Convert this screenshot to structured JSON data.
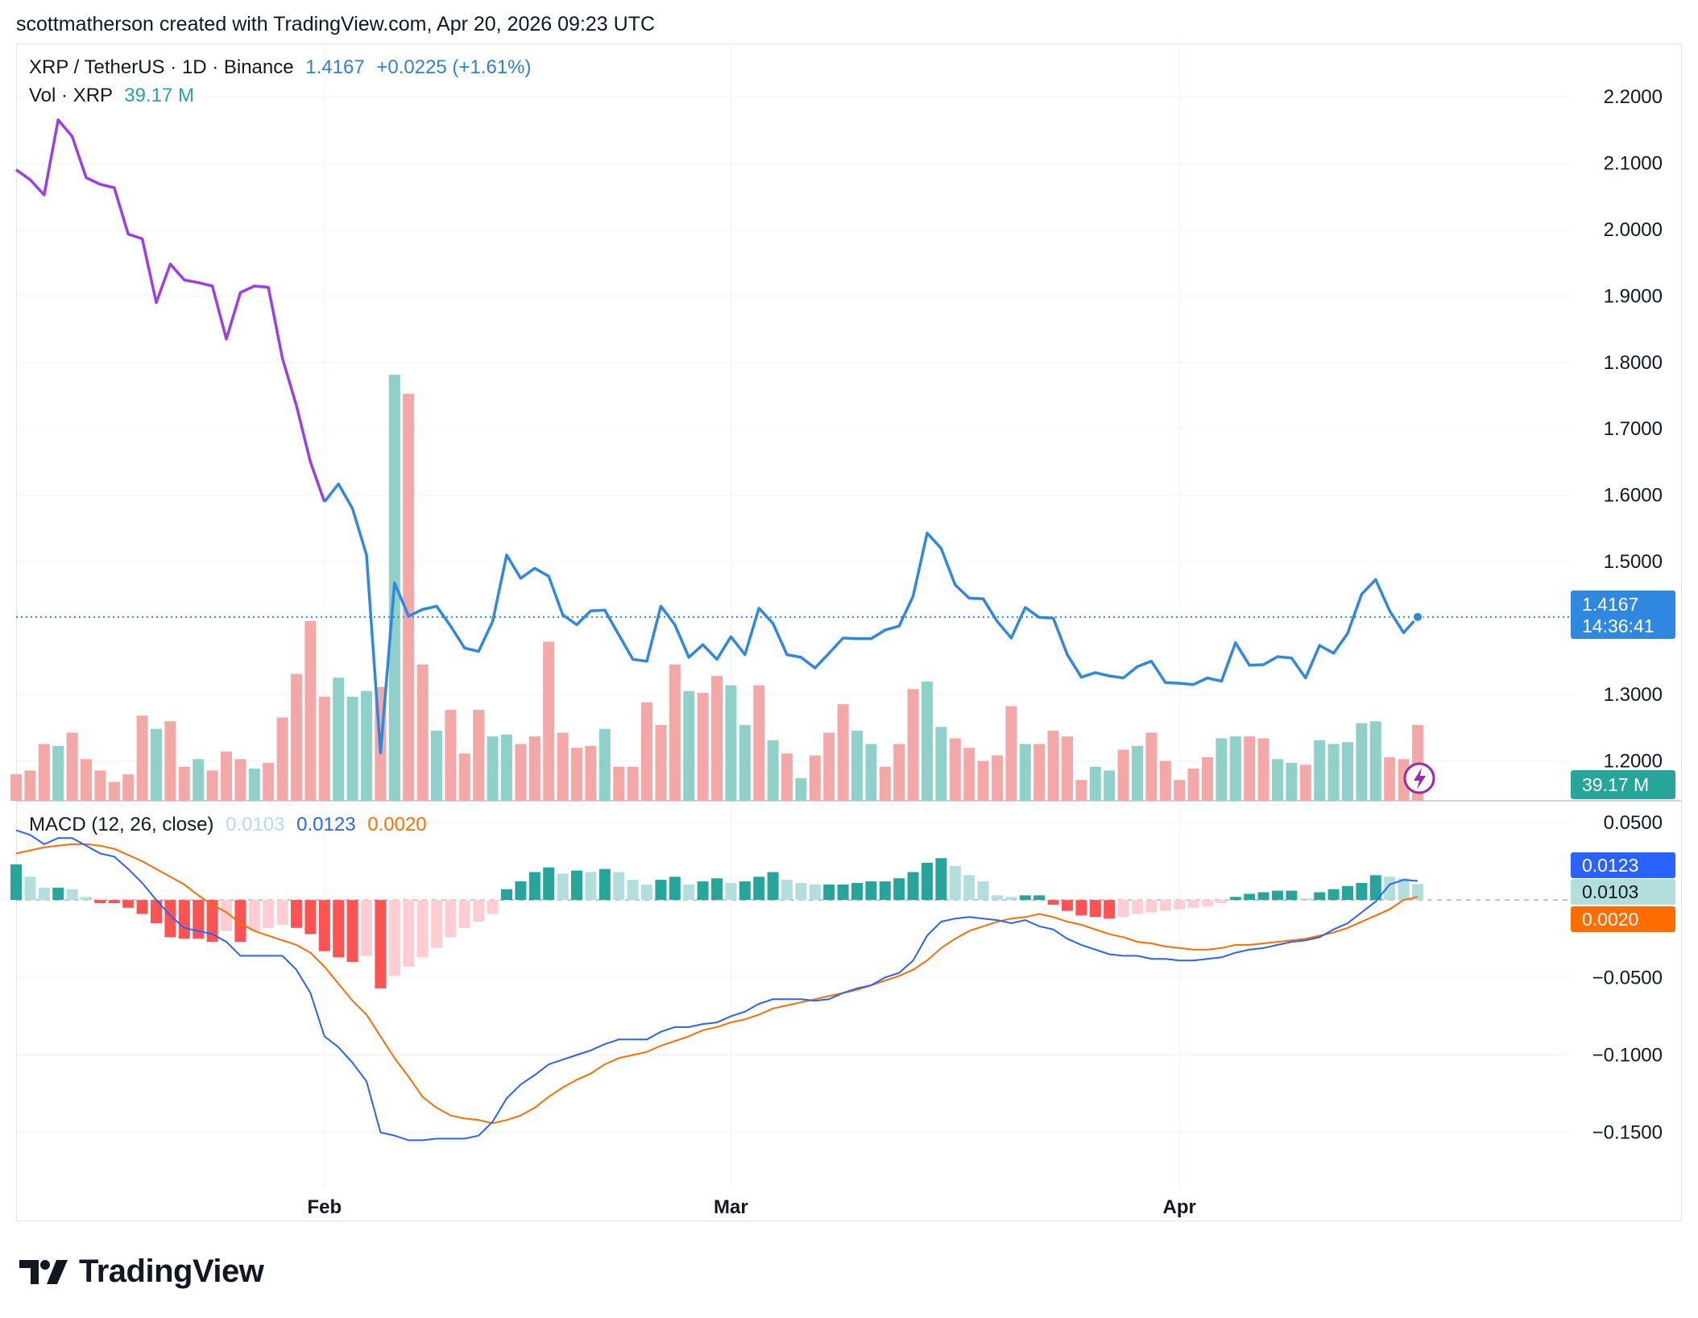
{
  "attribution": "scottmatherson created with TradingView.com, Apr 20, 2026 09:23 UTC",
  "legend": {
    "symbol": "XRP / TetherUS · 1D · Binance",
    "last": "1.4167",
    "change": "+0.0225 (+1.61%)",
    "vol_label": "Vol · XRP",
    "vol_value": "39.17 M",
    "macd_label": "MACD (12, 26, close)",
    "macd_hist": "0.0103",
    "macd_line": "0.0123",
    "macd_signal": "0.0020"
  },
  "price_tag": {
    "value": "1.4167",
    "countdown": "14:36:41"
  },
  "volume_tag": "39.17 M",
  "macd_tags": {
    "macd": "0.0123",
    "hist": "0.0103",
    "signal": "0.0020"
  },
  "brand": "TradingView",
  "colors": {
    "line_early": "#9c3de8",
    "line_late": "#2f88e0",
    "vol_up": "#8fd0c8",
    "vol_down": "#f4a7a7",
    "macd_blue": "#2962ff",
    "macd_orange": "#ff6d00",
    "hist_up_strong": "#26a69a",
    "hist_up_weak": "#b2dfdb",
    "hist_down_strong": "#ff5252",
    "hist_down_weak": "#ffcdd2"
  },
  "chart_data": {
    "type": "line",
    "x_ticks": [
      "Feb",
      "Mar",
      "Apr"
    ],
    "price": {
      "y_ticks": [
        "2.2000",
        "2.1000",
        "2.0000",
        "1.9000",
        "1.8000",
        "1.7000",
        "1.6000",
        "1.5000",
        "1.3000",
        "1.2000"
      ],
      "ylim": [
        1.14,
        2.28
      ],
      "purple_until_index": 22,
      "values": [
        2.09,
        2.075,
        2.052,
        2.165,
        2.14,
        2.078,
        2.068,
        2.063,
        1.993,
        1.986,
        1.89,
        1.948,
        1.924,
        1.92,
        1.915,
        1.835,
        1.905,
        1.915,
        1.913,
        1.806,
        1.735,
        1.65,
        1.59,
        1.617,
        1.58,
        1.51,
        1.212,
        1.468,
        1.418,
        1.428,
        1.433,
        1.403,
        1.37,
        1.365,
        1.41,
        1.51,
        1.475,
        1.49,
        1.478,
        1.42,
        1.405,
        1.426,
        1.427,
        1.39,
        1.353,
        1.35,
        1.433,
        1.405,
        1.356,
        1.375,
        1.353,
        1.387,
        1.36,
        1.43,
        1.407,
        1.36,
        1.356,
        1.34,
        1.362,
        1.385,
        1.384,
        1.384,
        1.397,
        1.403,
        1.448,
        1.543,
        1.52,
        1.465,
        1.445,
        1.444,
        1.41,
        1.385,
        1.431,
        1.416,
        1.415,
        1.36,
        1.326,
        1.333,
        1.328,
        1.325,
        1.342,
        1.35,
        1.318,
        1.317,
        1.315,
        1.325,
        1.32,
        1.378,
        1.344,
        1.345,
        1.357,
        1.355,
        1.325,
        1.374,
        1.362,
        1.392,
        1.451,
        1.473,
        1.426,
        1.393,
        1.4167
      ],
      "last": 1.4167
    },
    "volume": {
      "unit": "M",
      "up": [
        false,
        false,
        false,
        true,
        false,
        false,
        false,
        false,
        false,
        false,
        true,
        false,
        false,
        true,
        false,
        false,
        false,
        true,
        false,
        false,
        false,
        false,
        false,
        true,
        true,
        true,
        false,
        true,
        false,
        false,
        true,
        false,
        false,
        false,
        true,
        true,
        false,
        false,
        false,
        false,
        false,
        false,
        true,
        false,
        false,
        false,
        false,
        false,
        true,
        false,
        false,
        true,
        true,
        false,
        true,
        false,
        true,
        false,
        false,
        false,
        true,
        true,
        false,
        false,
        false,
        true,
        true,
        false,
        false,
        false,
        false,
        false,
        true,
        false,
        false,
        false,
        false,
        true,
        true,
        false,
        true,
        false,
        false,
        false,
        false,
        false,
        true,
        true,
        false,
        false,
        true,
        true,
        false,
        true,
        true,
        true,
        true,
        true,
        false,
        false,
        false
      ],
      "values": [
        14,
        16,
        30,
        29,
        36,
        22,
        16,
        10,
        14,
        45,
        38,
        42,
        18,
        22,
        16,
        26,
        22,
        17,
        20,
        44,
        67,
        95,
        55,
        65,
        55,
        58,
        60,
        225,
        215,
        72,
        37,
        48,
        25,
        48,
        34,
        35,
        30,
        34,
        84,
        36,
        28,
        29,
        38,
        18,
        18,
        52,
        40,
        72,
        58,
        57,
        66,
        61,
        40,
        61,
        32,
        25,
        12,
        24,
        36,
        51,
        37,
        30,
        18,
        30,
        59,
        63,
        39,
        33,
        28,
        21,
        24,
        50,
        30,
        30,
        37,
        34,
        11,
        18,
        16,
        27,
        29,
        36,
        21,
        11,
        17,
        23,
        33,
        34,
        34,
        33,
        22,
        20,
        19,
        32,
        30,
        31,
        41,
        42,
        23,
        22,
        40
      ],
      "ylim": [
        0,
        400
      ],
      "last": 39.17
    },
    "macd": {
      "y_ticks": [
        "0.0500",
        "−0.0500",
        "−0.1000",
        "−0.1500"
      ],
      "ylim": [
        -0.186,
        0.064
      ],
      "macd": [
        0.045,
        0.042,
        0.036,
        0.04,
        0.04,
        0.035,
        0.03,
        0.028,
        0.02,
        0.011,
        0.0,
        -0.01,
        -0.018,
        -0.02,
        -0.022,
        -0.027,
        -0.036,
        -0.036,
        -0.036,
        -0.036,
        -0.045,
        -0.06,
        -0.088,
        -0.095,
        -0.105,
        -0.117,
        -0.15,
        -0.152,
        -0.155,
        -0.155,
        -0.154,
        -0.154,
        -0.154,
        -0.152,
        -0.143,
        -0.128,
        -0.119,
        -0.113,
        -0.106,
        -0.103,
        -0.1,
        -0.097,
        -0.093,
        -0.09,
        -0.09,
        -0.09,
        -0.085,
        -0.082,
        -0.082,
        -0.08,
        -0.079,
        -0.075,
        -0.072,
        -0.067,
        -0.064,
        -0.064,
        -0.064,
        -0.065,
        -0.064,
        -0.06,
        -0.057,
        -0.055,
        -0.05,
        -0.047,
        -0.039,
        -0.023,
        -0.014,
        -0.012,
        -0.011,
        -0.012,
        -0.013,
        -0.015,
        -0.013,
        -0.017,
        -0.019,
        -0.025,
        -0.029,
        -0.032,
        -0.035,
        -0.036,
        -0.036,
        -0.038,
        -0.038,
        -0.039,
        -0.039,
        -0.038,
        -0.037,
        -0.034,
        -0.032,
        -0.031,
        -0.029,
        -0.027,
        -0.026,
        -0.024,
        -0.019,
        -0.015,
        -0.008,
        -0.001,
        0.01,
        0.013,
        0.0123
      ],
      "signal": [
        0.03,
        0.032,
        0.034,
        0.035,
        0.036,
        0.036,
        0.035,
        0.033,
        0.029,
        0.025,
        0.02,
        0.015,
        0.01,
        0.003,
        -0.003,
        -0.008,
        -0.015,
        -0.02,
        -0.023,
        -0.026,
        -0.029,
        -0.034,
        -0.043,
        -0.054,
        -0.065,
        -0.074,
        -0.088,
        -0.102,
        -0.114,
        -0.127,
        -0.134,
        -0.139,
        -0.141,
        -0.142,
        -0.144,
        -0.142,
        -0.139,
        -0.134,
        -0.127,
        -0.121,
        -0.116,
        -0.112,
        -0.106,
        -0.102,
        -0.1,
        -0.098,
        -0.094,
        -0.091,
        -0.088,
        -0.084,
        -0.082,
        -0.079,
        -0.077,
        -0.074,
        -0.07,
        -0.068,
        -0.066,
        -0.064,
        -0.062,
        -0.06,
        -0.058,
        -0.055,
        -0.052,
        -0.049,
        -0.045,
        -0.039,
        -0.031,
        -0.025,
        -0.02,
        -0.017,
        -0.014,
        -0.012,
        -0.011,
        -0.009,
        -0.011,
        -0.014,
        -0.016,
        -0.019,
        -0.022,
        -0.024,
        -0.027,
        -0.028,
        -0.03,
        -0.031,
        -0.032,
        -0.032,
        -0.031,
        -0.029,
        -0.029,
        -0.028,
        -0.027,
        -0.026,
        -0.025,
        -0.023,
        -0.021,
        -0.018,
        -0.014,
        -0.01,
        -0.006,
        0.0,
        0.002
      ],
      "histogram": [
        0.023,
        0.015,
        0.008,
        0.008,
        0.007,
        0.002,
        -0.002,
        -0.002,
        -0.005,
        -0.009,
        -0.015,
        -0.024,
        -0.025,
        -0.025,
        -0.027,
        -0.02,
        -0.027,
        -0.02,
        -0.018,
        -0.016,
        -0.018,
        -0.022,
        -0.033,
        -0.037,
        -0.04,
        -0.036,
        -0.057,
        -0.049,
        -0.043,
        -0.037,
        -0.031,
        -0.024,
        -0.018,
        -0.014,
        -0.009,
        0.007,
        0.012,
        0.018,
        0.021,
        0.017,
        0.019,
        0.018,
        0.02,
        0.018,
        0.013,
        0.01,
        0.013,
        0.015,
        0.01,
        0.012,
        0.014,
        0.011,
        0.012,
        0.015,
        0.018,
        0.013,
        0.011,
        0.01,
        0.01,
        0.01,
        0.011,
        0.012,
        0.012,
        0.014,
        0.018,
        0.024,
        0.027,
        0.022,
        0.016,
        0.012,
        0.003,
        0.002,
        0.003,
        0.003,
        -0.003,
        -0.007,
        -0.01,
        -0.011,
        -0.012,
        -0.011,
        -0.009,
        -0.008,
        -0.007,
        -0.006,
        -0.005,
        -0.004,
        -0.002,
        0.002,
        0.004,
        0.005,
        0.006,
        0.006,
        0.001,
        0.005,
        0.007,
        0.009,
        0.011,
        0.016,
        0.015,
        0.014,
        0.0103
      ]
    }
  }
}
